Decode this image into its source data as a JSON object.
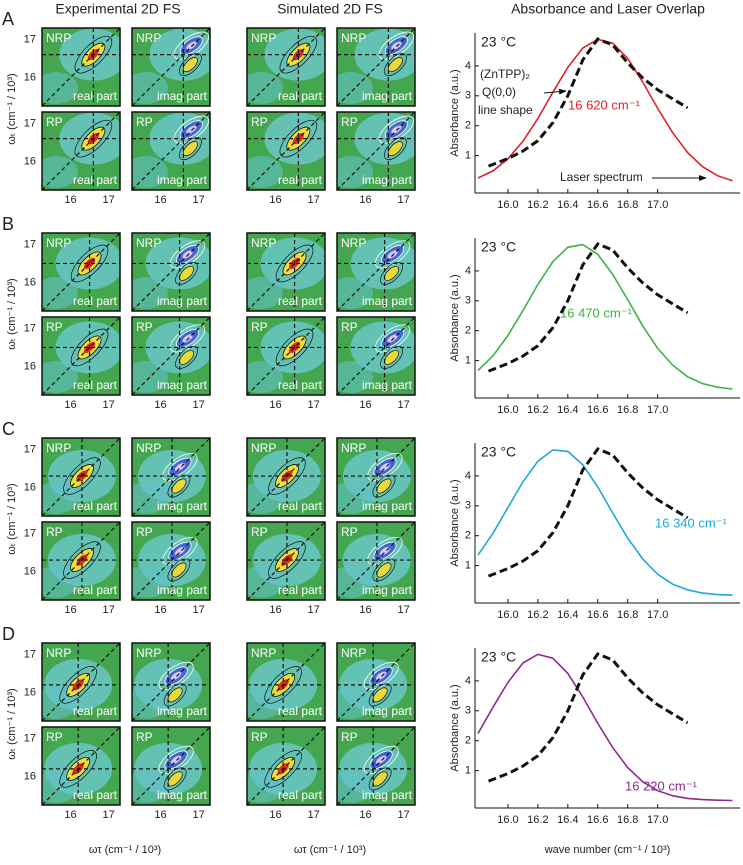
{
  "column_titles": [
    "Experimental 2D FS",
    "Simulated 2D FS",
    "Absorbance and Laser Overlap"
  ],
  "panel_letters": [
    "A",
    "B",
    "C",
    "D"
  ],
  "spectra": {
    "row_labels": [
      "NRP",
      "RP"
    ],
    "part_labels": [
      "real part",
      "imag part"
    ],
    "ticks": [
      16,
      17
    ],
    "lim": [
      15.25,
      17.3
    ],
    "y_axis_label": "ωₜ (cm⁻¹ / 10³)",
    "x_axis_label": "ωτ (cm⁻¹ / 10³)"
  },
  "chart_data": [
    {
      "type": "line",
      "temperature_label": "23 °C",
      "y_axis_label": "Absorbance (a.u.)",
      "annotations": [
        "(ZnTPP)₂",
        "Q(0,0)",
        "line shape",
        "Laser spectrum"
      ],
      "xlim": [
        15.78,
        17.55
      ],
      "ylim": [
        -0.25,
        5.1
      ],
      "xticks": [
        {
          "value": 16,
          "label": "16.0"
        },
        16.2,
        16.4,
        16.6,
        16.8,
        {
          "value": 17,
          "label": "17.0"
        }
      ],
      "yticks": [
        1,
        2,
        3,
        4
      ],
      "series": [
        {
          "name": "16 620 cm⁻¹",
          "color": "#e0202a",
          "style": "solid",
          "x": [
            15.8,
            15.9,
            16.0,
            16.1,
            16.2,
            16.3,
            16.4,
            16.5,
            16.6,
            16.7,
            16.8,
            16.9,
            17.0,
            17.1,
            17.2,
            17.3,
            17.4,
            17.5
          ],
          "values": [
            0.25,
            0.49,
            0.89,
            1.48,
            2.24,
            3.12,
            3.95,
            4.6,
            4.89,
            4.76,
            4.25,
            3.46,
            2.58,
            1.77,
            1.1,
            0.63,
            0.33,
            0.16
          ]
        },
        {
          "color": "#111111",
          "style": "dashed",
          "x": [
            15.87,
            16.0,
            16.1,
            16.2,
            16.3,
            16.4,
            16.5,
            16.6,
            16.7,
            16.8,
            16.9,
            17.0,
            17.1,
            17.2
          ],
          "values": [
            0.65,
            0.9,
            1.15,
            1.5,
            2.1,
            3.0,
            4.2,
            4.9,
            4.7,
            4.1,
            3.6,
            3.2,
            2.9,
            2.6
          ]
        }
      ]
    },
    {
      "type": "line",
      "temperature_label": "23 °C",
      "y_axis_label": "Absorbance (a.u.)",
      "xlim": [
        15.78,
        17.55
      ],
      "ylim": [
        -0.25,
        5.1
      ],
      "xticks": [
        {
          "value": 16,
          "label": "16.0"
        },
        16.2,
        16.4,
        16.6,
        16.8,
        {
          "value": 17,
          "label": "17.0"
        }
      ],
      "yticks": [
        1,
        2,
        3,
        4
      ],
      "series": [
        {
          "name": "16 470 cm⁻¹",
          "color": "#3cb44a",
          "style": "solid",
          "x": [
            15.8,
            15.9,
            16.0,
            16.1,
            16.2,
            16.3,
            16.4,
            16.5,
            16.6,
            16.7,
            16.8,
            16.9,
            17.0,
            17.1,
            17.2,
            17.3,
            17.4,
            17.5
          ],
          "values": [
            0.67,
            1.16,
            1.84,
            2.67,
            3.55,
            4.31,
            4.79,
            4.88,
            4.55,
            3.88,
            3.04,
            2.16,
            1.41,
            0.85,
            0.46,
            0.23,
            0.11,
            0.05
          ]
        },
        {
          "color": "#111111",
          "style": "dashed",
          "x": [
            15.87,
            16.0,
            16.1,
            16.2,
            16.3,
            16.4,
            16.5,
            16.6,
            16.7,
            16.8,
            16.9,
            17.0,
            17.1,
            17.2
          ],
          "values": [
            0.65,
            0.9,
            1.15,
            1.5,
            2.1,
            3.0,
            4.2,
            4.9,
            4.7,
            4.1,
            3.6,
            3.2,
            2.9,
            2.6
          ]
        }
      ]
    },
    {
      "type": "line",
      "temperature_label": "23 °C",
      "y_axis_label": "Absorbance (a.u.)",
      "xlim": [
        15.78,
        17.55
      ],
      "ylim": [
        -0.25,
        5.1
      ],
      "xticks": [
        {
          "value": 16,
          "label": "16.0"
        },
        16.2,
        16.4,
        16.6,
        16.8,
        {
          "value": 17,
          "label": "17.0"
        }
      ],
      "yticks": [
        1,
        2,
        3,
        4
      ],
      "series": [
        {
          "name": "16 340 cm⁻¹",
          "color": "#1aa7e0",
          "style": "solid",
          "x": [
            15.8,
            15.9,
            16.0,
            16.1,
            16.2,
            16.3,
            16.4,
            16.5,
            16.6,
            16.7,
            16.8,
            16.9,
            17.0,
            17.1,
            17.2,
            17.3,
            17.4,
            17.5
          ],
          "values": [
            1.35,
            2.08,
            2.94,
            3.8,
            4.49,
            4.87,
            4.82,
            4.37,
            3.63,
            2.76,
            1.92,
            1.22,
            0.71,
            0.38,
            0.19,
            0.08,
            0.03,
            0.01
          ]
        },
        {
          "color": "#111111",
          "style": "dashed",
          "x": [
            15.87,
            16.0,
            16.1,
            16.2,
            16.3,
            16.4,
            16.5,
            16.6,
            16.7,
            16.8,
            16.9,
            17.0,
            17.1,
            17.2
          ],
          "values": [
            0.65,
            0.9,
            1.15,
            1.5,
            2.1,
            3.0,
            4.2,
            4.9,
            4.7,
            4.1,
            3.6,
            3.2,
            2.9,
            2.6
          ]
        }
      ]
    },
    {
      "type": "line",
      "temperature_label": "23 °C",
      "y_axis_label": "Absorbance (a.u.)",
      "x_axis_label": "wave number (cm⁻¹ / 10³)",
      "xlim": [
        15.78,
        17.55
      ],
      "ylim": [
        -0.25,
        5.1
      ],
      "xticks": [
        {
          "value": 16,
          "label": "16.0"
        },
        16.2,
        16.4,
        16.6,
        16.8,
        {
          "value": 17,
          "label": "17.0"
        }
      ],
      "yticks": [
        1,
        2,
        3,
        4
      ],
      "series": [
        {
          "name": "16 220 cm⁻¹",
          "color": "#8e2a8e",
          "style": "solid",
          "x": [
            15.8,
            15.9,
            16.0,
            16.1,
            16.2,
            16.3,
            16.4,
            16.5,
            16.6,
            16.7,
            16.8,
            16.9,
            17.0,
            17.1,
            17.2,
            17.3,
            17.4,
            17.5
          ],
          "values": [
            2.24,
            3.12,
            3.95,
            4.6,
            4.89,
            4.76,
            4.25,
            3.46,
            2.58,
            1.77,
            1.1,
            0.63,
            0.33,
            0.16,
            0.07,
            0.03,
            0.01,
            0.0
          ]
        },
        {
          "color": "#111111",
          "style": "dashed",
          "x": [
            15.87,
            16.0,
            16.1,
            16.2,
            16.3,
            16.4,
            16.5,
            16.6,
            16.7,
            16.8,
            16.9,
            17.0,
            17.1,
            17.2
          ],
          "values": [
            0.65,
            0.9,
            1.15,
            1.5,
            2.1,
            3.0,
            4.2,
            4.9,
            4.7,
            4.1,
            3.6,
            3.2,
            2.9,
            2.6
          ]
        }
      ]
    }
  ]
}
